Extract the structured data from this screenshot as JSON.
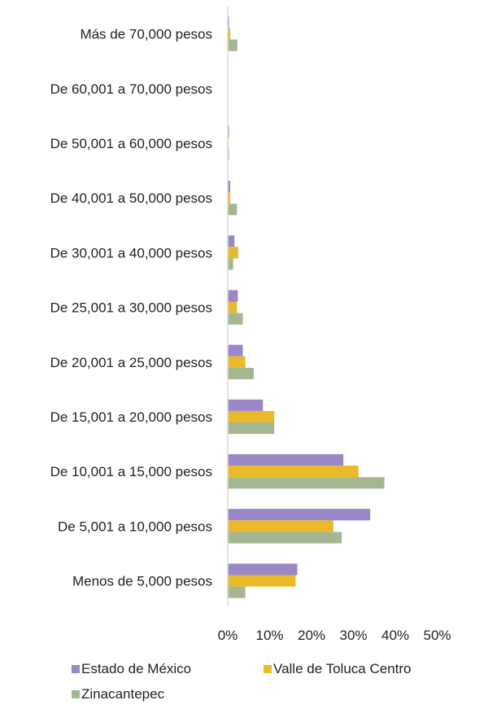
{
  "chart_data": {
    "type": "bar",
    "orientation": "horizontal",
    "categories": [
      "Más de 70,000 pesos",
      "De 60,001 a 70,000 pesos",
      "De 50,001 a 60,000 pesos",
      "De 40,001 a 50,000 pesos",
      "De 30,001 a 40,000 pesos",
      "De 25,001 a 30,000 pesos",
      "De 20,001 a 25,000 pesos",
      "De 15,001 a 20,000 pesos",
      "De 10,001 a 15,000 pesos",
      "De 5,001 a 10,000 pesos",
      "Menos de 5,000 pesos"
    ],
    "series": [
      {
        "name": "Estado de México",
        "color": "#9b87c6",
        "values": [
          0.3,
          0.1,
          0.3,
          0.6,
          1.6,
          2.4,
          3.6,
          8.4,
          27.6,
          34.0,
          16.6
        ]
      },
      {
        "name": "Valle de Toluca Centro",
        "color": "#e8ba2a",
        "values": [
          0.6,
          0.1,
          0.2,
          0.6,
          2.5,
          2.2,
          4.2,
          11.1,
          31.2,
          25.2,
          16.2
        ]
      },
      {
        "name": "Zinacantepec",
        "color": "#a5b792",
        "values": [
          2.3,
          0.0,
          0.3,
          2.2,
          1.3,
          3.6,
          6.2,
          11.1,
          37.4,
          27.2,
          4.2
        ]
      }
    ],
    "x_ticks": [
      "0%",
      "10%",
      "20%",
      "30%",
      "40%",
      "50%"
    ],
    "xlim": [
      0,
      50
    ],
    "grid": false,
    "legend_position": "bottom"
  }
}
